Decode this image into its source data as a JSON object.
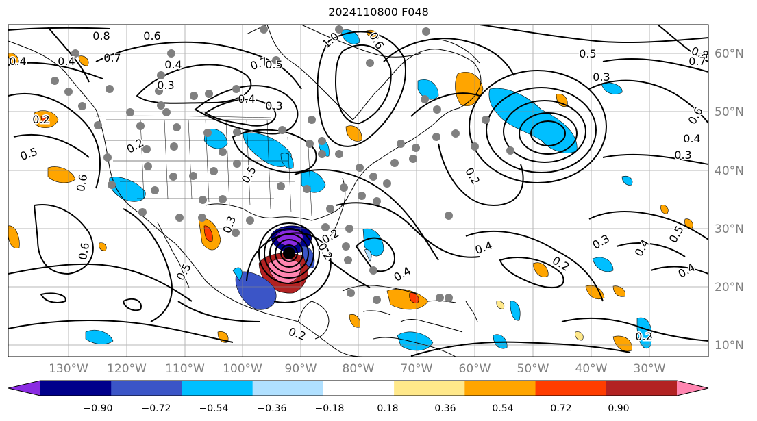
{
  "title": "2024110800 F048",
  "lat_labels": [
    "60°N",
    "50°N",
    "40°N",
    "30°N",
    "20°N",
    "10°N"
  ],
  "lon_labels": [
    "130°W",
    "120°W",
    "110°W",
    "100°W",
    "90°W",
    "80°W",
    "70°W",
    "60°W",
    "50°W",
    "40°W",
    "30°W"
  ],
  "colorbar": {
    "ticks": [
      "−0.90",
      "−0.72",
      "−0.54",
      "−0.36",
      "−0.18",
      "0.18",
      "0.36",
      "0.54",
      "0.72",
      "0.90"
    ],
    "colors": [
      "#8a2be2",
      "#00008b",
      "#3b55c7",
      "#00bfff",
      "#b0e0ff",
      "#ffffff",
      "#ffe88a",
      "#ffa500",
      "#ff3d00",
      "#b22222",
      "#ff85b0"
    ]
  },
  "contour_labels": [
    "0.8",
    "0.6",
    "0.4",
    "0.7",
    "0.4",
    "0.5",
    "0.3",
    "1.0",
    "0.6",
    "0.7",
    "0.3",
    "0.4",
    "0.5",
    "0.8",
    "0.7",
    "0.6",
    "0.3",
    "0.5",
    "0.6",
    "0.4",
    "0.2",
    "0.5",
    "0.6",
    "0.5",
    "0.3",
    "0.2",
    "0.4",
    "0.3",
    "0.5",
    "0.4",
    "0.2",
    "0.2",
    "0.3",
    "0.4",
    "0.2",
    "0.4",
    "0.4",
    "0.2",
    "0.2",
    "0.2"
  ]
}
